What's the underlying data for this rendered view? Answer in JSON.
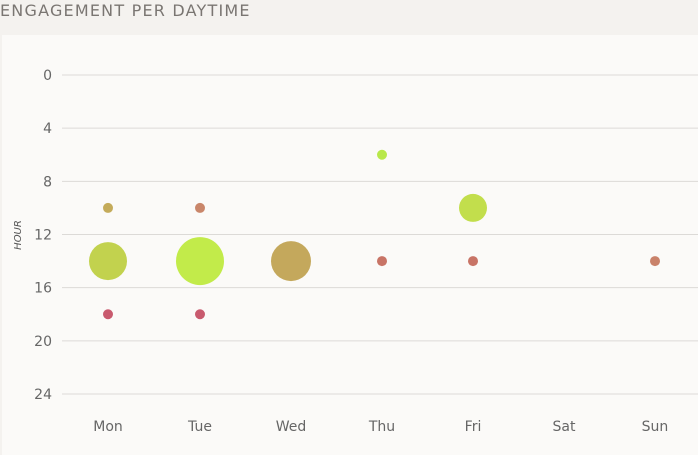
{
  "title": "ENGAGEMENT PER DAYTIME",
  "chart_data": {
    "type": "scatter",
    "subtype": "bubble",
    "title": "ENGAGEMENT PER DAYTIME",
    "xlabel": "",
    "ylabel": "HOUR",
    "categories": [
      "Mon",
      "Tue",
      "Wed",
      "Thu",
      "Fri",
      "Sat",
      "Sun"
    ],
    "y_ticks": [
      0,
      4,
      8,
      12,
      16,
      20,
      24
    ],
    "ylim": [
      0,
      24
    ],
    "y_inverted": true,
    "grid": true,
    "legend": null,
    "points": [
      {
        "day": "Mon",
        "hour": 10,
        "size": 5,
        "color": "#c4ab5a"
      },
      {
        "day": "Mon",
        "hour": 14,
        "size": 19,
        "color": "#c2d24e"
      },
      {
        "day": "Mon",
        "hour": 18,
        "size": 5,
        "color": "#c85a6e"
      },
      {
        "day": "Tue",
        "hour": 10,
        "size": 5,
        "color": "#c9866a"
      },
      {
        "day": "Tue",
        "hour": 14,
        "size": 24,
        "color": "#c2eb4a"
      },
      {
        "day": "Tue",
        "hour": 18,
        "size": 5,
        "color": "#c85a6e"
      },
      {
        "day": "Wed",
        "hour": 14,
        "size": 20,
        "color": "#c4a85c"
      },
      {
        "day": "Thu",
        "hour": 6,
        "size": 5,
        "color": "#b8e84a"
      },
      {
        "day": "Thu",
        "hour": 14,
        "size": 5,
        "color": "#c87466"
      },
      {
        "day": "Fri",
        "hour": 10,
        "size": 14,
        "color": "#c2de4c"
      },
      {
        "day": "Fri",
        "hour": 14,
        "size": 5,
        "color": "#c87466"
      },
      {
        "day": "Sun",
        "hour": 14,
        "size": 5,
        "color": "#c9826a"
      }
    ]
  }
}
